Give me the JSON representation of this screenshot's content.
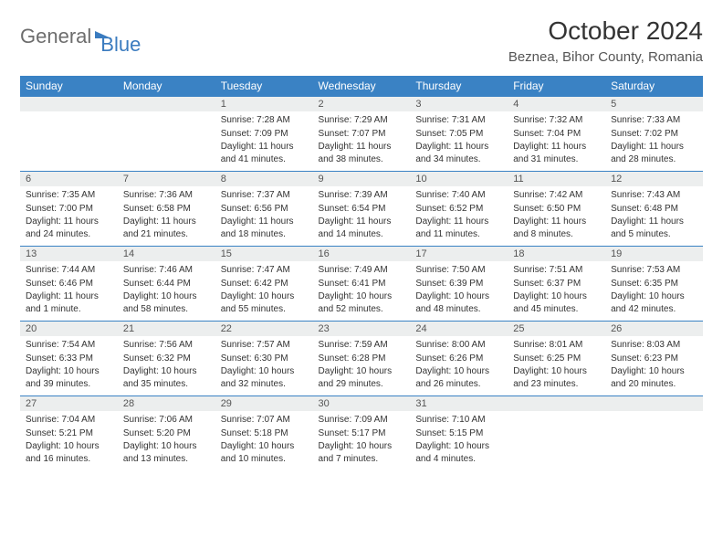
{
  "logo": {
    "part1": "General",
    "part2": "Blue"
  },
  "title": "October 2024",
  "location": "Beznea, Bihor County, Romania",
  "calendar": {
    "type": "table",
    "header_bg": "#3a82c4",
    "header_fg": "#ffffff",
    "daynum_bg": "#eceeee",
    "border_color": "#3a82c4",
    "text_color": "#333333",
    "font_family": "Arial",
    "title_fontsize": 28,
    "location_fontsize": 15,
    "header_fontsize": 12,
    "cell_fontsize": 10,
    "columns": [
      "Sunday",
      "Monday",
      "Tuesday",
      "Wednesday",
      "Thursday",
      "Friday",
      "Saturday"
    ],
    "weeks": [
      [
        null,
        null,
        {
          "n": "1",
          "sr": "Sunrise: 7:28 AM",
          "ss": "Sunset: 7:09 PM",
          "dl": "Daylight: 11 hours and 41 minutes."
        },
        {
          "n": "2",
          "sr": "Sunrise: 7:29 AM",
          "ss": "Sunset: 7:07 PM",
          "dl": "Daylight: 11 hours and 38 minutes."
        },
        {
          "n": "3",
          "sr": "Sunrise: 7:31 AM",
          "ss": "Sunset: 7:05 PM",
          "dl": "Daylight: 11 hours and 34 minutes."
        },
        {
          "n": "4",
          "sr": "Sunrise: 7:32 AM",
          "ss": "Sunset: 7:04 PM",
          "dl": "Daylight: 11 hours and 31 minutes."
        },
        {
          "n": "5",
          "sr": "Sunrise: 7:33 AM",
          "ss": "Sunset: 7:02 PM",
          "dl": "Daylight: 11 hours and 28 minutes."
        }
      ],
      [
        {
          "n": "6",
          "sr": "Sunrise: 7:35 AM",
          "ss": "Sunset: 7:00 PM",
          "dl": "Daylight: 11 hours and 24 minutes."
        },
        {
          "n": "7",
          "sr": "Sunrise: 7:36 AM",
          "ss": "Sunset: 6:58 PM",
          "dl": "Daylight: 11 hours and 21 minutes."
        },
        {
          "n": "8",
          "sr": "Sunrise: 7:37 AM",
          "ss": "Sunset: 6:56 PM",
          "dl": "Daylight: 11 hours and 18 minutes."
        },
        {
          "n": "9",
          "sr": "Sunrise: 7:39 AM",
          "ss": "Sunset: 6:54 PM",
          "dl": "Daylight: 11 hours and 14 minutes."
        },
        {
          "n": "10",
          "sr": "Sunrise: 7:40 AM",
          "ss": "Sunset: 6:52 PM",
          "dl": "Daylight: 11 hours and 11 minutes."
        },
        {
          "n": "11",
          "sr": "Sunrise: 7:42 AM",
          "ss": "Sunset: 6:50 PM",
          "dl": "Daylight: 11 hours and 8 minutes."
        },
        {
          "n": "12",
          "sr": "Sunrise: 7:43 AM",
          "ss": "Sunset: 6:48 PM",
          "dl": "Daylight: 11 hours and 5 minutes."
        }
      ],
      [
        {
          "n": "13",
          "sr": "Sunrise: 7:44 AM",
          "ss": "Sunset: 6:46 PM",
          "dl": "Daylight: 11 hours and 1 minute."
        },
        {
          "n": "14",
          "sr": "Sunrise: 7:46 AM",
          "ss": "Sunset: 6:44 PM",
          "dl": "Daylight: 10 hours and 58 minutes."
        },
        {
          "n": "15",
          "sr": "Sunrise: 7:47 AM",
          "ss": "Sunset: 6:42 PM",
          "dl": "Daylight: 10 hours and 55 minutes."
        },
        {
          "n": "16",
          "sr": "Sunrise: 7:49 AM",
          "ss": "Sunset: 6:41 PM",
          "dl": "Daylight: 10 hours and 52 minutes."
        },
        {
          "n": "17",
          "sr": "Sunrise: 7:50 AM",
          "ss": "Sunset: 6:39 PM",
          "dl": "Daylight: 10 hours and 48 minutes."
        },
        {
          "n": "18",
          "sr": "Sunrise: 7:51 AM",
          "ss": "Sunset: 6:37 PM",
          "dl": "Daylight: 10 hours and 45 minutes."
        },
        {
          "n": "19",
          "sr": "Sunrise: 7:53 AM",
          "ss": "Sunset: 6:35 PM",
          "dl": "Daylight: 10 hours and 42 minutes."
        }
      ],
      [
        {
          "n": "20",
          "sr": "Sunrise: 7:54 AM",
          "ss": "Sunset: 6:33 PM",
          "dl": "Daylight: 10 hours and 39 minutes."
        },
        {
          "n": "21",
          "sr": "Sunrise: 7:56 AM",
          "ss": "Sunset: 6:32 PM",
          "dl": "Daylight: 10 hours and 35 minutes."
        },
        {
          "n": "22",
          "sr": "Sunrise: 7:57 AM",
          "ss": "Sunset: 6:30 PM",
          "dl": "Daylight: 10 hours and 32 minutes."
        },
        {
          "n": "23",
          "sr": "Sunrise: 7:59 AM",
          "ss": "Sunset: 6:28 PM",
          "dl": "Daylight: 10 hours and 29 minutes."
        },
        {
          "n": "24",
          "sr": "Sunrise: 8:00 AM",
          "ss": "Sunset: 6:26 PM",
          "dl": "Daylight: 10 hours and 26 minutes."
        },
        {
          "n": "25",
          "sr": "Sunrise: 8:01 AM",
          "ss": "Sunset: 6:25 PM",
          "dl": "Daylight: 10 hours and 23 minutes."
        },
        {
          "n": "26",
          "sr": "Sunrise: 8:03 AM",
          "ss": "Sunset: 6:23 PM",
          "dl": "Daylight: 10 hours and 20 minutes."
        }
      ],
      [
        {
          "n": "27",
          "sr": "Sunrise: 7:04 AM",
          "ss": "Sunset: 5:21 PM",
          "dl": "Daylight: 10 hours and 16 minutes."
        },
        {
          "n": "28",
          "sr": "Sunrise: 7:06 AM",
          "ss": "Sunset: 5:20 PM",
          "dl": "Daylight: 10 hours and 13 minutes."
        },
        {
          "n": "29",
          "sr": "Sunrise: 7:07 AM",
          "ss": "Sunset: 5:18 PM",
          "dl": "Daylight: 10 hours and 10 minutes."
        },
        {
          "n": "30",
          "sr": "Sunrise: 7:09 AM",
          "ss": "Sunset: 5:17 PM",
          "dl": "Daylight: 10 hours and 7 minutes."
        },
        {
          "n": "31",
          "sr": "Sunrise: 7:10 AM",
          "ss": "Sunset: 5:15 PM",
          "dl": "Daylight: 10 hours and 4 minutes."
        },
        null,
        null
      ]
    ]
  }
}
